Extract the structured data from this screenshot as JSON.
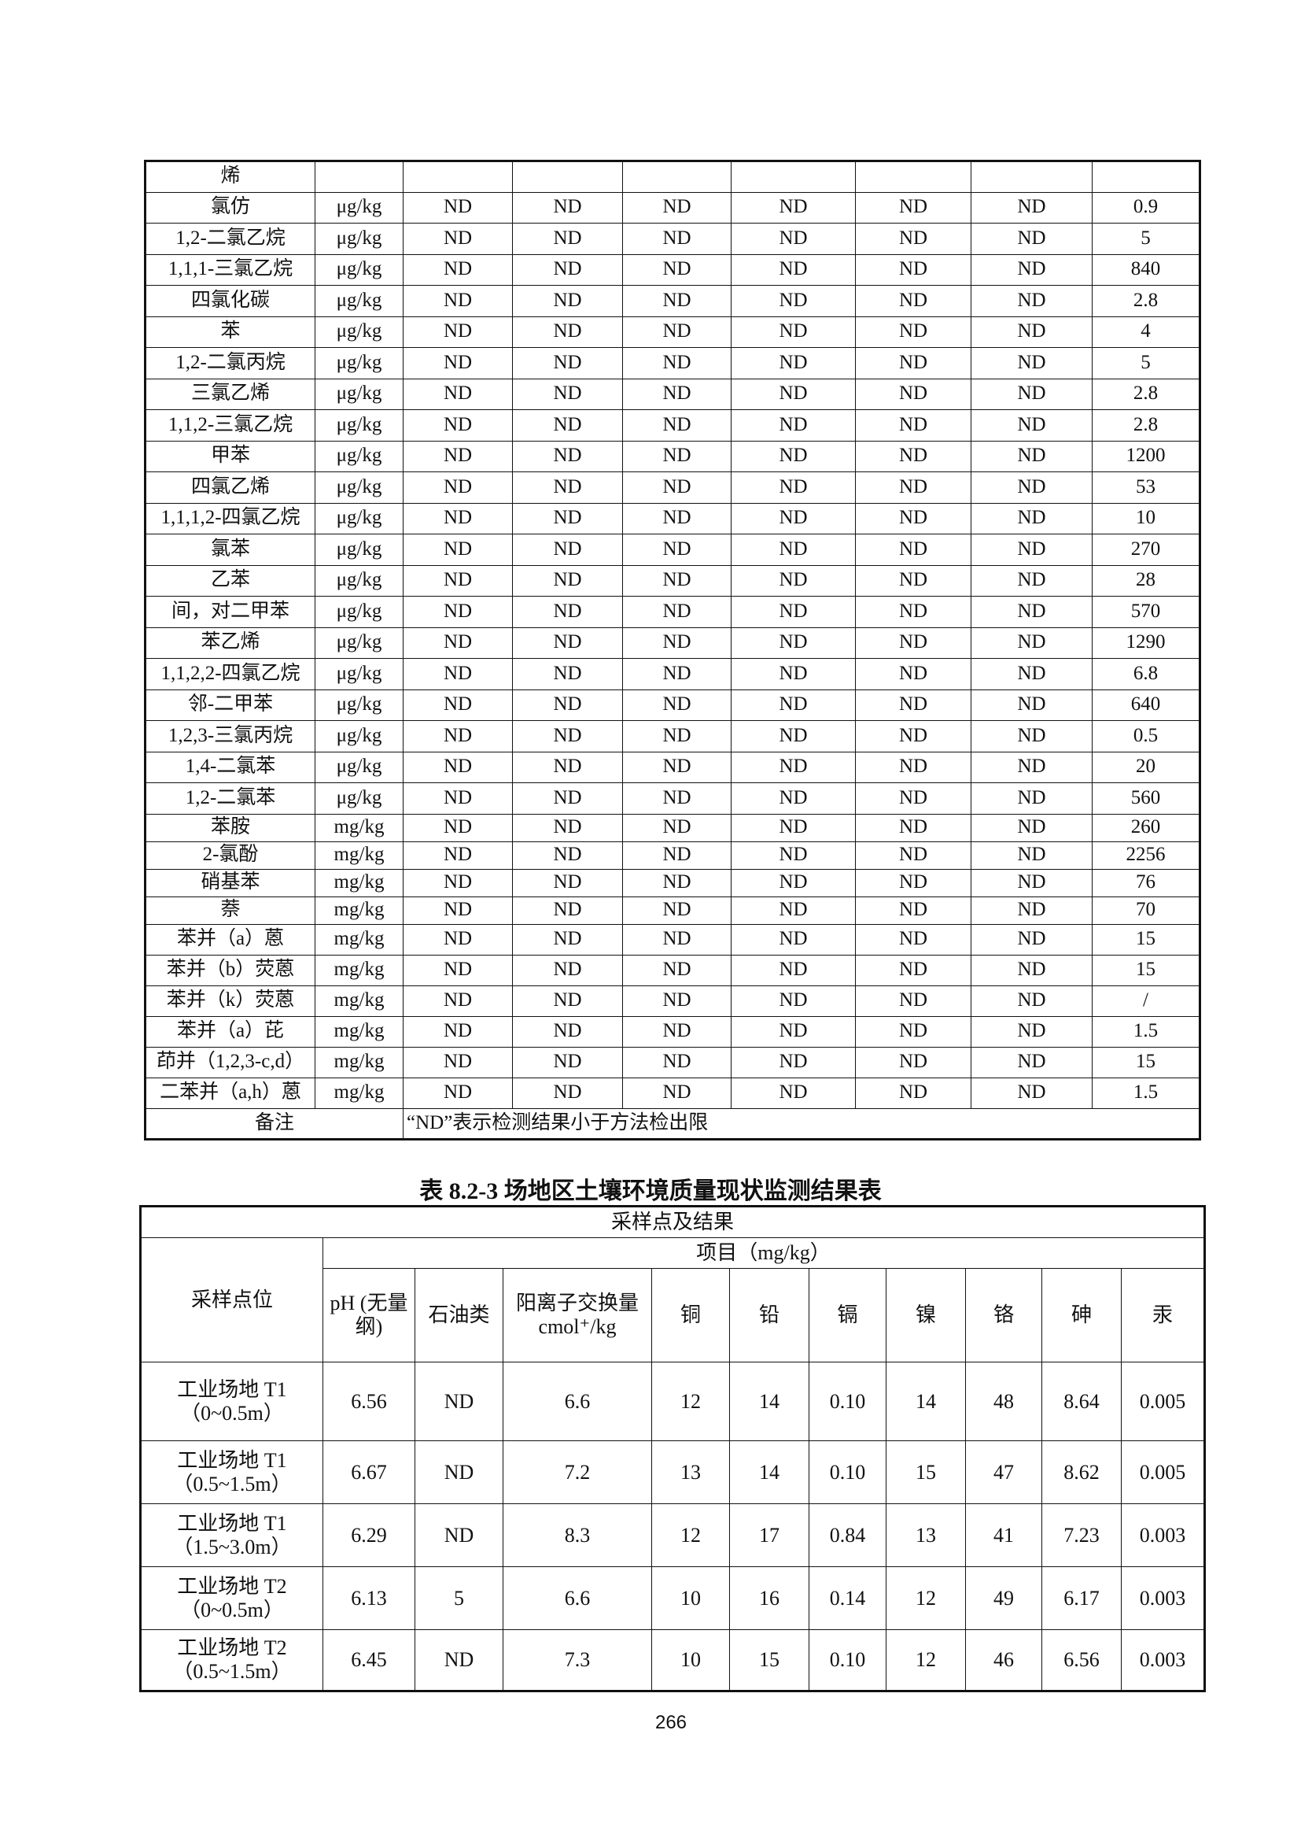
{
  "table1": {
    "rows": [
      {
        "name": "烯",
        "unit": "",
        "values": [
          "",
          "",
          "",
          "",
          "",
          ""
        ],
        "standard": ""
      },
      {
        "name": "氯仿",
        "unit": "μg/kg",
        "values": [
          "ND",
          "ND",
          "ND",
          "ND",
          "ND",
          "ND"
        ],
        "standard": "0.9"
      },
      {
        "name": "1,2-二氯乙烷",
        "unit": "μg/kg",
        "values": [
          "ND",
          "ND",
          "ND",
          "ND",
          "ND",
          "ND"
        ],
        "standard": "5"
      },
      {
        "name": "1,1,1-三氯乙烷",
        "unit": "μg/kg",
        "values": [
          "ND",
          "ND",
          "ND",
          "ND",
          "ND",
          "ND"
        ],
        "standard": "840"
      },
      {
        "name": "四氯化碳",
        "unit": "μg/kg",
        "values": [
          "ND",
          "ND",
          "ND",
          "ND",
          "ND",
          "ND"
        ],
        "standard": "2.8"
      },
      {
        "name": "苯",
        "unit": "μg/kg",
        "values": [
          "ND",
          "ND",
          "ND",
          "ND",
          "ND",
          "ND"
        ],
        "standard": "4"
      },
      {
        "name": "1,2-二氯丙烷",
        "unit": "μg/kg",
        "values": [
          "ND",
          "ND",
          "ND",
          "ND",
          "ND",
          "ND"
        ],
        "standard": "5"
      },
      {
        "name": "三氯乙烯",
        "unit": "μg/kg",
        "values": [
          "ND",
          "ND",
          "ND",
          "ND",
          "ND",
          "ND"
        ],
        "standard": "2.8"
      },
      {
        "name": "1,1,2-三氯乙烷",
        "unit": "μg/kg",
        "values": [
          "ND",
          "ND",
          "ND",
          "ND",
          "ND",
          "ND"
        ],
        "standard": "2.8"
      },
      {
        "name": "甲苯",
        "unit": "μg/kg",
        "values": [
          "ND",
          "ND",
          "ND",
          "ND",
          "ND",
          "ND"
        ],
        "standard": "1200"
      },
      {
        "name": "四氯乙烯",
        "unit": "μg/kg",
        "values": [
          "ND",
          "ND",
          "ND",
          "ND",
          "ND",
          "ND"
        ],
        "standard": "53"
      },
      {
        "name": "1,1,1,2-四氯乙烷",
        "unit": "μg/kg",
        "values": [
          "ND",
          "ND",
          "ND",
          "ND",
          "ND",
          "ND"
        ],
        "standard": "10"
      },
      {
        "name": "氯苯",
        "unit": "μg/kg",
        "values": [
          "ND",
          "ND",
          "ND",
          "ND",
          "ND",
          "ND"
        ],
        "standard": "270"
      },
      {
        "name": "乙苯",
        "unit": "μg/kg",
        "values": [
          "ND",
          "ND",
          "ND",
          "ND",
          "ND",
          "ND"
        ],
        "standard": "28"
      },
      {
        "name": "间，对二甲苯",
        "unit": "μg/kg",
        "values": [
          "ND",
          "ND",
          "ND",
          "ND",
          "ND",
          "ND"
        ],
        "standard": "570"
      },
      {
        "name": "苯乙烯",
        "unit": "μg/kg",
        "values": [
          "ND",
          "ND",
          "ND",
          "ND",
          "ND",
          "ND"
        ],
        "standard": "1290"
      },
      {
        "name": "1,1,2,2-四氯乙烷",
        "unit": "μg/kg",
        "values": [
          "ND",
          "ND",
          "ND",
          "ND",
          "ND",
          "ND"
        ],
        "standard": "6.8"
      },
      {
        "name": "邻-二甲苯",
        "unit": "μg/kg",
        "values": [
          "ND",
          "ND",
          "ND",
          "ND",
          "ND",
          "ND"
        ],
        "standard": "640"
      },
      {
        "name": "1,2,3-三氯丙烷",
        "unit": "μg/kg",
        "values": [
          "ND",
          "ND",
          "ND",
          "ND",
          "ND",
          "ND"
        ],
        "standard": "0.5"
      },
      {
        "name": "1,4-二氯苯",
        "unit": "μg/kg",
        "values": [
          "ND",
          "ND",
          "ND",
          "ND",
          "ND",
          "ND"
        ],
        "standard": "20"
      },
      {
        "name": "1,2-二氯苯",
        "unit": "μg/kg",
        "values": [
          "ND",
          "ND",
          "ND",
          "ND",
          "ND",
          "ND"
        ],
        "standard": "560"
      },
      {
        "name": "苯胺",
        "unit": "mg/kg",
        "values": [
          "ND",
          "ND",
          "ND",
          "ND",
          "ND",
          "ND"
        ],
        "standard": "260"
      },
      {
        "name": "2-氯酚",
        "unit": "mg/kg",
        "values": [
          "ND",
          "ND",
          "ND",
          "ND",
          "ND",
          "ND"
        ],
        "standard": "2256"
      },
      {
        "name": "硝基苯",
        "unit": "mg/kg",
        "values": [
          "ND",
          "ND",
          "ND",
          "ND",
          "ND",
          "ND"
        ],
        "standard": "76"
      },
      {
        "name": "萘",
        "unit": "mg/kg",
        "values": [
          "ND",
          "ND",
          "ND",
          "ND",
          "ND",
          "ND"
        ],
        "standard": "70"
      },
      {
        "name": "苯并（a）蒽",
        "unit": "mg/kg",
        "values": [
          "ND",
          "ND",
          "ND",
          "ND",
          "ND",
          "ND"
        ],
        "standard": "15"
      },
      {
        "name": "苯并（b）荧蒽",
        "unit": "mg/kg",
        "values": [
          "ND",
          "ND",
          "ND",
          "ND",
          "ND",
          "ND"
        ],
        "standard": "15"
      },
      {
        "name": "苯并（k）荧蒽",
        "unit": "mg/kg",
        "values": [
          "ND",
          "ND",
          "ND",
          "ND",
          "ND",
          "ND"
        ],
        "standard": "/"
      },
      {
        "name": "苯并（a）芘",
        "unit": "mg/kg",
        "values": [
          "ND",
          "ND",
          "ND",
          "ND",
          "ND",
          "ND"
        ],
        "standard": "1.5"
      },
      {
        "name": "茚并（1,2,3-c,d）",
        "unit": "mg/kg",
        "values": [
          "ND",
          "ND",
          "ND",
          "ND",
          "ND",
          "ND"
        ],
        "standard": "15"
      },
      {
        "name": "二苯并（a,h）蒽",
        "unit": "mg/kg",
        "values": [
          "ND",
          "ND",
          "ND",
          "ND",
          "ND",
          "ND"
        ],
        "standard": "1.5"
      }
    ],
    "remark_label": "备注",
    "remark_text": "“ND”表示检测结果小于方法检出限"
  },
  "table2": {
    "title": "表 8.2-3  场地区土壤环境质量现状监测结果表",
    "top_header": "采样点及结果",
    "location_header": "采样点位",
    "items_header": "项目（mg/kg）",
    "columns": [
      "pH (无量纲)",
      "石油类",
      "阳离子交换量 cmol⁺/kg",
      "铜",
      "铅",
      "镉",
      "镍",
      "铬",
      "砷",
      "汞"
    ],
    "rows": [
      {
        "location": "工业场地 T1（0~0.5m）",
        "values": [
          "6.56",
          "ND",
          "6.6",
          "12",
          "14",
          "0.10",
          "14",
          "48",
          "8.64",
          "0.005"
        ]
      },
      {
        "location": "工业场地 T1（0.5~1.5m）",
        "values": [
          "6.67",
          "ND",
          "7.2",
          "13",
          "14",
          "0.10",
          "15",
          "47",
          "8.62",
          "0.005"
        ]
      },
      {
        "location": "工业场地 T1（1.5~3.0m）",
        "values": [
          "6.29",
          "ND",
          "8.3",
          "12",
          "17",
          "0.84",
          "13",
          "41",
          "7.23",
          "0.003"
        ]
      },
      {
        "location": "工业场地 T2（0~0.5m）",
        "values": [
          "6.13",
          "5",
          "6.6",
          "10",
          "16",
          "0.14",
          "12",
          "49",
          "6.17",
          "0.003"
        ]
      },
      {
        "location": "工业场地 T2（0.5~1.5m）",
        "values": [
          "6.45",
          "ND",
          "7.3",
          "10",
          "15",
          "0.10",
          "12",
          "46",
          "6.56",
          "0.003"
        ]
      }
    ]
  },
  "page_number": "266"
}
